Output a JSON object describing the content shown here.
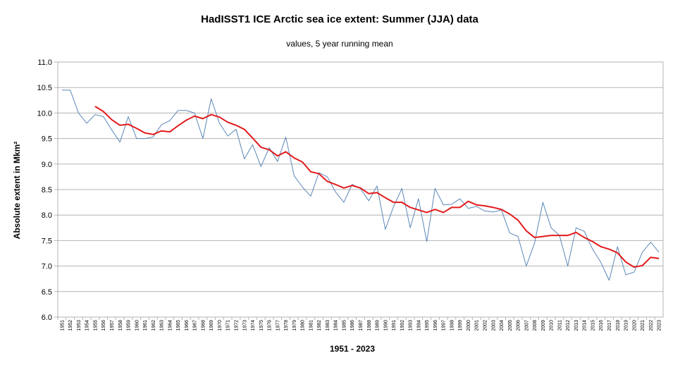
{
  "chart_data": {
    "type": "line",
    "title": "HadISST1 ICE Arctic sea ice extent: Summer (JJA) data",
    "subtitle": "values, 5 year running mean",
    "xlabel": "1951 - 2023",
    "ylabel": "Absolute extent in Mkm²",
    "ylim": [
      6.0,
      11.0
    ],
    "yticks": [
      "6.0",
      "6.5",
      "7.0",
      "7.5",
      "8.0",
      "8.5",
      "9.0",
      "9.5",
      "10.0",
      "10.5",
      "11.0"
    ],
    "grid": true,
    "legend": "none",
    "x": [
      "1951",
      "1952",
      "1953",
      "1954",
      "1955",
      "1956",
      "1957",
      "1958",
      "1959",
      "1960",
      "1961",
      "1962",
      "1963",
      "1964",
      "1965",
      "1966",
      "1967",
      "1968",
      "1969",
      "1970",
      "1971",
      "1972",
      "1973",
      "1974",
      "1975",
      "1976",
      "1977",
      "1978",
      "1979",
      "1980",
      "1981",
      "1982",
      "1983",
      "1984",
      "1985",
      "1986",
      "1987",
      "1988",
      "1989",
      "1990",
      "1991",
      "1992",
      "1993",
      "1994",
      "1995",
      "1996",
      "1997",
      "1998",
      "1999",
      "2000",
      "2001",
      "2002",
      "2003",
      "2004",
      "2005",
      "2006",
      "2007",
      "2008",
      "2009",
      "2010",
      "2011",
      "2012",
      "2013",
      "2014",
      "2015",
      "2016",
      "2017",
      "2018",
      "2019",
      "2020",
      "2021",
      "2022",
      "2023"
    ],
    "series": [
      {
        "color": "#5b87b8",
        "values": [
          10.45,
          10.45,
          10.0,
          9.8,
          9.97,
          9.93,
          9.67,
          9.43,
          9.93,
          9.5,
          9.5,
          9.53,
          9.77,
          9.85,
          10.05,
          10.05,
          10.0,
          9.5,
          10.28,
          9.8,
          9.55,
          9.68,
          9.1,
          9.38,
          8.95,
          9.32,
          9.05,
          9.53,
          8.77,
          8.55,
          8.37,
          8.83,
          8.75,
          8.45,
          8.25,
          8.6,
          8.52,
          8.28,
          8.57,
          7.72,
          8.17,
          8.52,
          7.75,
          8.32,
          7.48,
          8.52,
          8.2,
          8.21,
          8.32,
          8.13,
          8.17,
          8.08,
          8.06,
          8.1,
          7.65,
          7.58,
          7.0,
          7.45,
          8.25,
          7.75,
          7.6,
          7.0,
          7.75,
          7.68,
          7.33,
          7.07,
          6.72,
          7.38,
          6.83,
          6.88,
          7.27,
          7.47,
          7.27
        ]
      },
      {
        "color": "#e31a1c",
        "values": [
          null,
          null,
          null,
          null,
          10.13,
          10.03,
          9.87,
          9.76,
          9.78,
          9.7,
          9.61,
          9.58,
          9.65,
          9.63,
          9.75,
          9.86,
          9.94,
          9.89,
          9.97,
          9.92,
          9.82,
          9.76,
          9.68,
          9.51,
          9.33,
          9.28,
          9.16,
          9.24,
          9.12,
          9.04,
          8.85,
          8.81,
          8.66,
          8.6,
          8.53,
          8.58,
          8.53,
          8.42,
          8.44,
          8.34,
          8.25,
          8.25,
          8.15,
          8.1,
          8.05,
          8.11,
          8.05,
          8.15,
          8.15,
          8.27,
          8.2,
          8.18,
          8.15,
          8.11,
          8.02,
          7.9,
          7.69,
          7.56,
          7.58,
          7.6,
          7.6,
          7.6,
          7.66,
          7.56,
          7.48,
          7.38,
          7.33,
          7.26,
          7.08,
          6.98,
          7.01,
          7.17,
          7.15
        ]
      }
    ]
  }
}
